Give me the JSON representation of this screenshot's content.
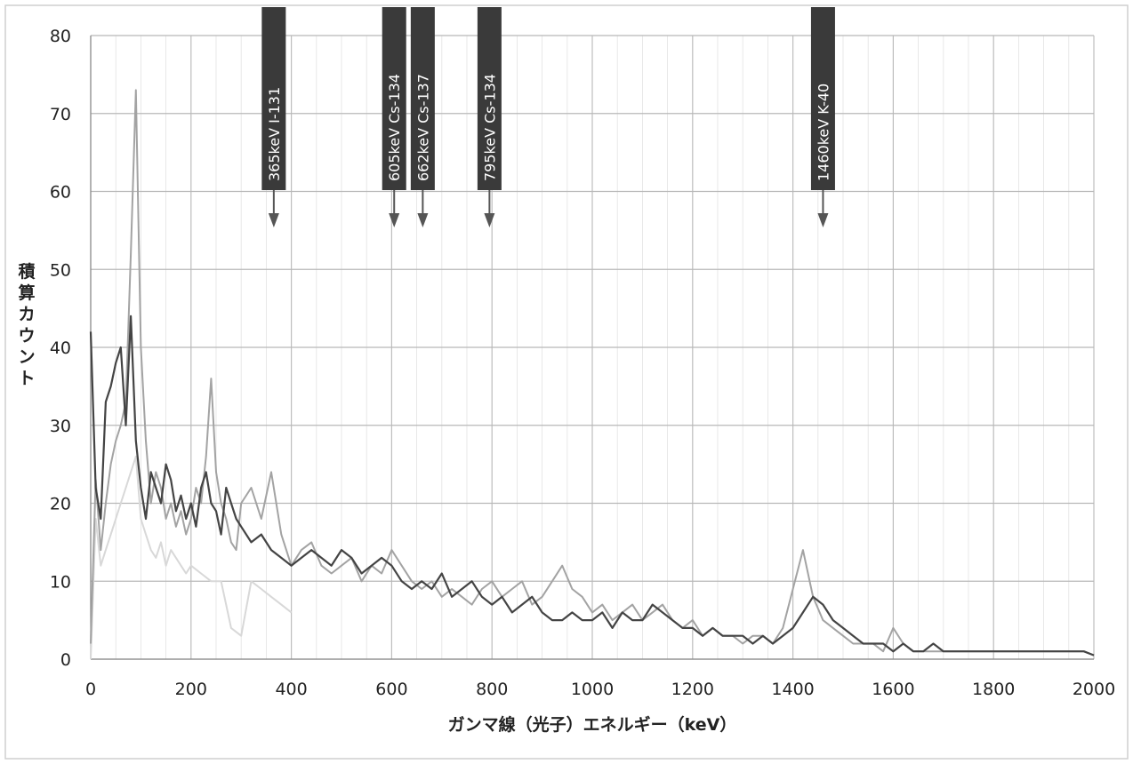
{
  "chart_data": {
    "type": "line",
    "title": "",
    "xlabel": "ガンマ線（光子）エネルギー（keV）",
    "ylabel": "積算カウント",
    "xlim": [
      0,
      2000
    ],
    "ylim": [
      0,
      80
    ],
    "x_ticks": [
      0,
      200,
      400,
      600,
      800,
      1000,
      1200,
      1400,
      1600,
      1800,
      2000
    ],
    "y_ticks": [
      0,
      10,
      20,
      30,
      40,
      50,
      60,
      70,
      80
    ],
    "x_tick_labels": [
      "0",
      "200",
      "400",
      "600",
      "800",
      "1000",
      "1200",
      "1400",
      "1600",
      "1800",
      "2000"
    ],
    "y_tick_labels": [
      "0",
      "10",
      "20",
      "30",
      "40",
      "50",
      "60",
      "70",
      "80"
    ],
    "grid": true,
    "legend": "none",
    "series": [
      {
        "color": "#444444",
        "x": [
          0,
          10,
          20,
          30,
          40,
          50,
          60,
          70,
          80,
          90,
          100,
          110,
          120,
          130,
          140,
          150,
          160,
          170,
          180,
          190,
          200,
          210,
          220,
          230,
          240,
          250,
          260,
          270,
          280,
          290,
          300,
          320,
          340,
          360,
          380,
          400,
          420,
          440,
          460,
          480,
          500,
          520,
          540,
          560,
          580,
          600,
          620,
          640,
          660,
          680,
          700,
          720,
          740,
          760,
          780,
          800,
          820,
          840,
          860,
          880,
          900,
          920,
          940,
          960,
          980,
          1000,
          1020,
          1040,
          1060,
          1080,
          1100,
          1120,
          1140,
          1160,
          1180,
          1200,
          1220,
          1240,
          1260,
          1280,
          1300,
          1320,
          1340,
          1360,
          1380,
          1400,
          1420,
          1440,
          1460,
          1480,
          1500,
          1520,
          1540,
          1560,
          1580,
          1600,
          1620,
          1640,
          1660,
          1680,
          1700,
          1720,
          1740,
          1760,
          1780,
          1800,
          1820,
          1840,
          1860,
          1880,
          1900,
          1920,
          1940,
          1960,
          1980,
          2000
        ],
        "y": [
          42,
          22,
          18,
          33,
          35,
          38,
          40,
          30,
          44,
          28,
          22,
          18,
          24,
          22,
          20,
          25,
          23,
          19,
          21,
          18,
          20,
          17,
          22,
          24,
          20,
          19,
          16,
          22,
          20,
          18,
          17,
          15,
          16,
          14,
          13,
          12,
          13,
          14,
          13,
          12,
          14,
          13,
          11,
          12,
          13,
          12,
          10,
          9,
          10,
          9,
          11,
          8,
          9,
          10,
          8,
          7,
          8,
          6,
          7,
          8,
          6,
          5,
          5,
          6,
          5,
          5,
          6,
          4,
          6,
          5,
          5,
          7,
          6,
          5,
          4,
          4,
          3,
          4,
          3,
          3,
          3,
          2,
          3,
          2,
          3,
          4,
          6,
          8,
          7,
          5,
          4,
          3,
          2,
          2,
          2,
          1,
          2,
          1,
          1,
          2,
          1,
          1,
          1,
          1,
          1,
          1,
          1,
          1,
          1,
          1,
          1,
          1,
          1,
          1,
          1,
          0.5
        ]
      },
      {
        "color": "#a3a3a3",
        "x": [
          0,
          10,
          20,
          30,
          40,
          50,
          60,
          70,
          80,
          90,
          100,
          110,
          120,
          130,
          140,
          150,
          160,
          170,
          180,
          190,
          200,
          210,
          220,
          230,
          240,
          250,
          260,
          270,
          280,
          290,
          300,
          320,
          340,
          360,
          380,
          400,
          420,
          440,
          460,
          480,
          500,
          520,
          540,
          560,
          580,
          600,
          620,
          640,
          660,
          680,
          700,
          720,
          740,
          760,
          780,
          800,
          820,
          840,
          860,
          880,
          900,
          920,
          940,
          960,
          980,
          1000,
          1020,
          1040,
          1060,
          1080,
          1100,
          1120,
          1140,
          1160,
          1180,
          1200,
          1220,
          1240,
          1260,
          1280,
          1300,
          1320,
          1340,
          1360,
          1380,
          1400,
          1420,
          1440,
          1460,
          1480,
          1500,
          1520,
          1540,
          1560,
          1580,
          1600,
          1620,
          1640,
          1660,
          1680,
          1700,
          1720,
          1740,
          1760,
          1780,
          1800,
          1820,
          1840,
          1860,
          1880,
          1900,
          1920,
          1940,
          1960,
          1980,
          2000
        ],
        "y": [
          2,
          23,
          14,
          20,
          25,
          28,
          30,
          33,
          52,
          73,
          40,
          28,
          20,
          24,
          22,
          18,
          20,
          17,
          19,
          16,
          18,
          22,
          20,
          26,
          36,
          24,
          20,
          18,
          15,
          14,
          20,
          22,
          18,
          24,
          16,
          12,
          14,
          15,
          12,
          11,
          12,
          13,
          10,
          12,
          11,
          14,
          12,
          10,
          9,
          10,
          8,
          9,
          8,
          7,
          9,
          10,
          8,
          9,
          10,
          7,
          8,
          10,
          12,
          9,
          8,
          6,
          7,
          5,
          6,
          7,
          5,
          6,
          7,
          5,
          4,
          5,
          3,
          4,
          3,
          3,
          2,
          3,
          3,
          2,
          4,
          9,
          14,
          8,
          5,
          4,
          3,
          2,
          2,
          2,
          1,
          4,
          2,
          1,
          1,
          1,
          1,
          1,
          1,
          1,
          1,
          1,
          1,
          1,
          1,
          1,
          1,
          1,
          1,
          1,
          1,
          0.5
        ]
      },
      {
        "color": "#d8d8d8",
        "x": [
          0,
          10,
          20,
          30,
          40,
          50,
          60,
          70,
          80,
          90,
          100,
          110,
          120,
          130,
          140,
          150,
          160,
          170,
          180,
          190,
          200,
          220,
          240,
          260,
          280,
          300,
          320,
          340,
          360,
          380,
          400
        ],
        "y": [
          0,
          18,
          12,
          14,
          16,
          18,
          20,
          22,
          24,
          26,
          18,
          16,
          14,
          13,
          15,
          12,
          14,
          13,
          12,
          11,
          12,
          11,
          10,
          10,
          4,
          3,
          10,
          9,
          8,
          7,
          6
        ]
      }
    ],
    "annotations": [
      {
        "text": "365keV  I-131",
        "x": 365
      },
      {
        "text": "605keV  Cs-134",
        "x": 605
      },
      {
        "text": "662keV  Cs-137",
        "x": 662
      },
      {
        "text": "795keV  Cs-134",
        "x": 795
      },
      {
        "text": "1460keV  K-40",
        "x": 1460
      }
    ]
  }
}
